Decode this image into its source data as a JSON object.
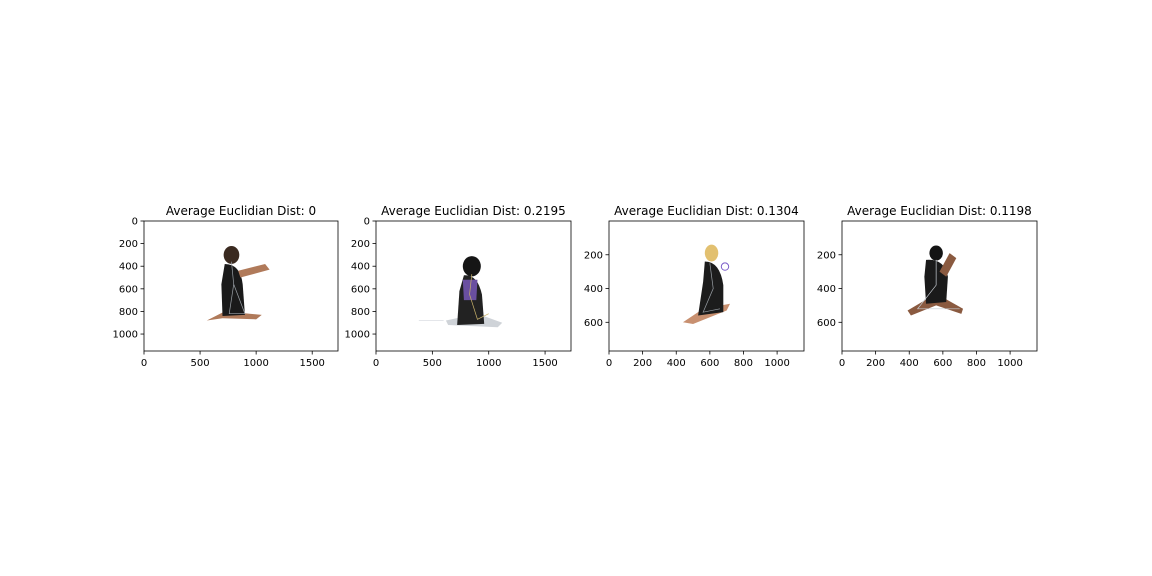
{
  "chart_data": [
    {
      "type": "image",
      "title": "Average Euclidian Dist: 0",
      "xlim": [
        0,
        1730
      ],
      "ylim": [
        1150,
        0
      ],
      "xticks": [
        0,
        500,
        1000,
        1500
      ],
      "yticks": [
        0,
        200,
        400,
        600,
        800,
        1000
      ],
      "figure": {
        "pose": "kneeling, arms raised forward",
        "clothing": "#1a1a1a",
        "hair": "#3a2a20",
        "skin": "#b07a5a"
      }
    },
    {
      "type": "image",
      "title": "Average Euclidian Dist: 0.2195",
      "xlim": [
        0,
        1730
      ],
      "ylim": [
        1150,
        0
      ],
      "xticks": [
        0,
        500,
        1000,
        1500
      ],
      "yticks": [
        0,
        200,
        400,
        600,
        800,
        1000
      ],
      "figure": {
        "pose": "sitting, knees up",
        "clothing": "#222222",
        "top": "#6a4fa0",
        "hair": "#151515",
        "skin": "#a06a4a"
      }
    },
    {
      "type": "image",
      "title": "Average Euclidian Dist: 0.1304",
      "xlim": [
        0,
        1160
      ],
      "ylim": [
        770,
        0
      ],
      "xticks": [
        0,
        200,
        400,
        600,
        800,
        1000
      ],
      "yticks": [
        200,
        400,
        600
      ],
      "figure": {
        "pose": "sitting, legs extended",
        "clothing": "#1c1c1c",
        "hair": "#e2c070",
        "skin": "#c89070"
      }
    },
    {
      "type": "image",
      "title": "Average Euclidian Dist: 0.1198",
      "xlim": [
        0,
        1160
      ],
      "ylim": [
        770,
        0
      ],
      "xticks": [
        0,
        200,
        400,
        600,
        800,
        1000
      ],
      "yticks": [
        200,
        400,
        600
      ],
      "figure": {
        "pose": "sitting, legs crossed",
        "clothing": "#1a1a1a",
        "hair": "#141414",
        "skin": "#8a5a40"
      }
    }
  ]
}
